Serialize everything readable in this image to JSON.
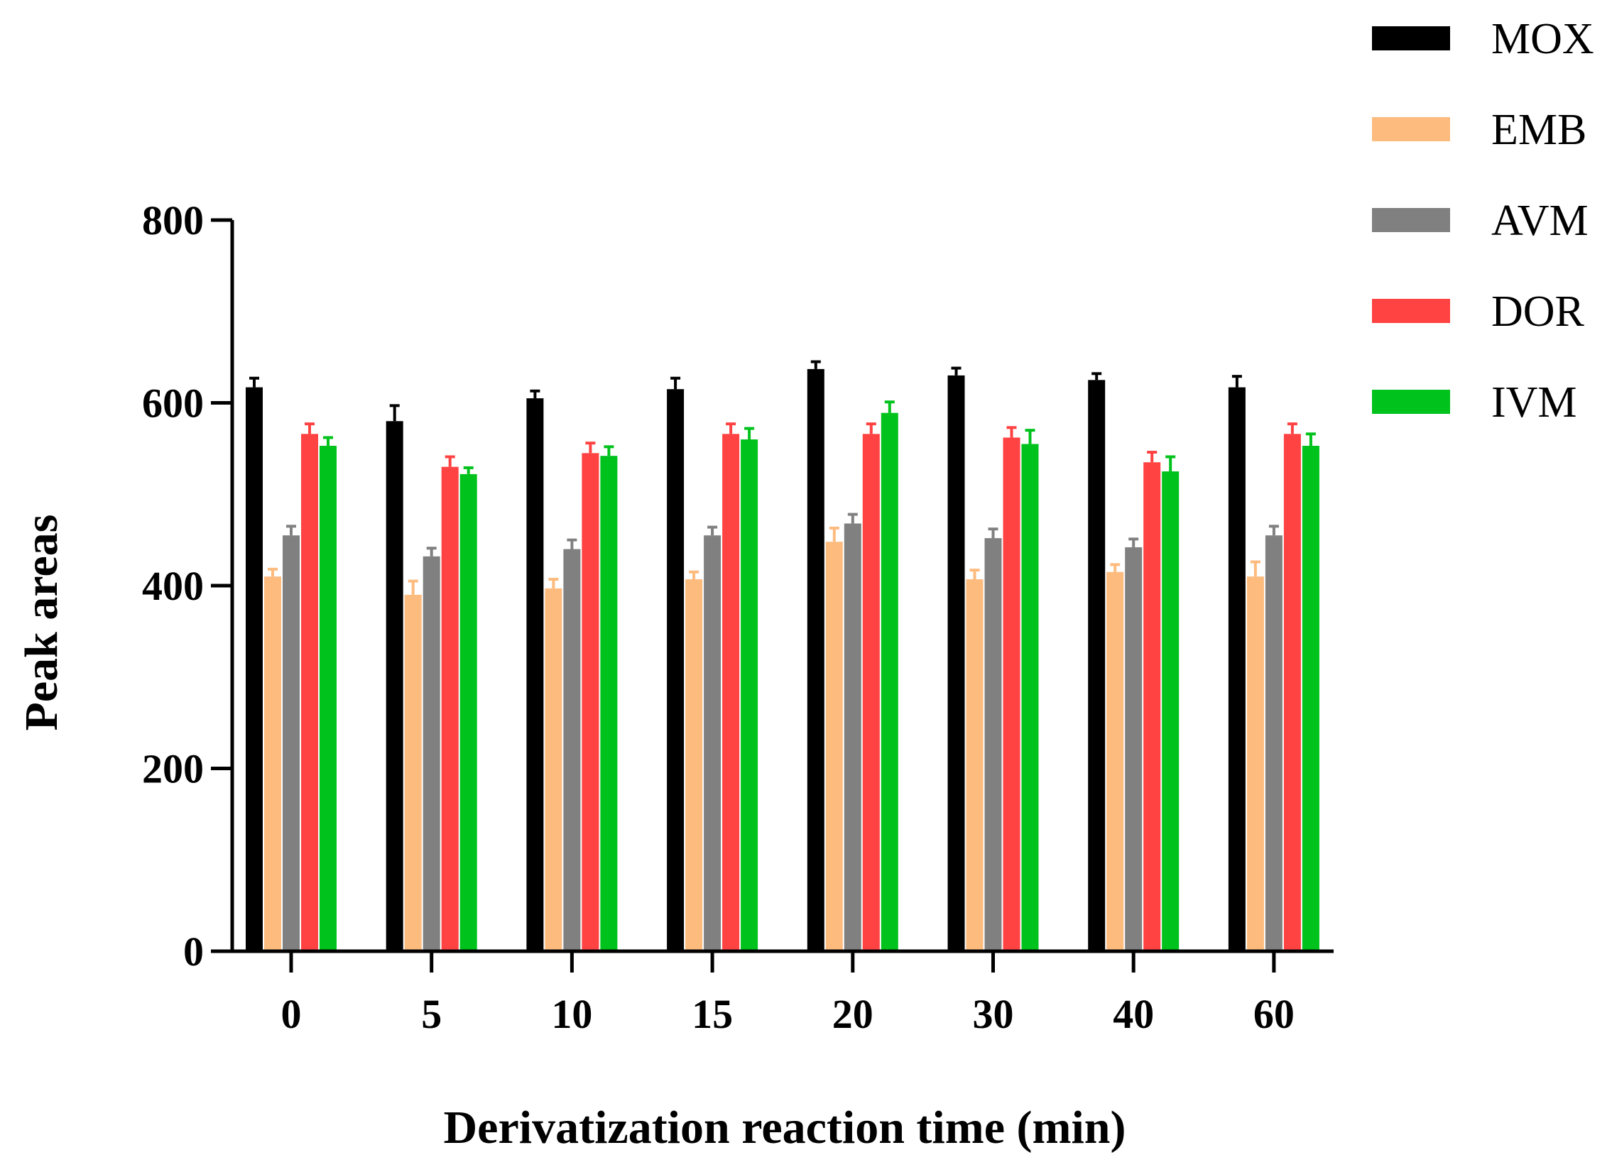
{
  "chart_data": {
    "type": "bar",
    "title": "",
    "xlabel": "Derivatization reaction time (min)",
    "ylabel": "Peak areas",
    "ylim": [
      0,
      800
    ],
    "yticks": [
      0,
      200,
      400,
      600,
      800
    ],
    "grid": false,
    "legend_position": "top-right",
    "categories": [
      "0",
      "5",
      "10",
      "15",
      "20",
      "30",
      "40",
      "60"
    ],
    "series": [
      {
        "name": "MOX",
        "color": "#000000",
        "values": [
          617,
          580,
          605,
          615,
          637,
          630,
          625,
          617
        ],
        "errors": [
          10,
          17,
          8,
          12,
          8,
          8,
          7,
          12
        ]
      },
      {
        "name": "EMB",
        "color": "#FDBB7E",
        "values": [
          410,
          390,
          397,
          407,
          448,
          407,
          415,
          410
        ],
        "errors": [
          8,
          15,
          10,
          8,
          15,
          10,
          8,
          16
        ]
      },
      {
        "name": "AVM",
        "color": "#808080",
        "values": [
          455,
          432,
          440,
          455,
          468,
          452,
          442,
          455
        ],
        "errors": [
          10,
          9,
          10,
          9,
          10,
          10,
          9,
          10
        ]
      },
      {
        "name": "DOR",
        "color": "#FF4242",
        "values": [
          566,
          530,
          545,
          566,
          566,
          562,
          535,
          566
        ],
        "errors": [
          11,
          11,
          11,
          11,
          11,
          11,
          11,
          11
        ]
      },
      {
        "name": "IVM",
        "color": "#00C21C",
        "values": [
          553,
          522,
          542,
          560,
          589,
          555,
          525,
          553
        ],
        "errors": [
          9,
          7,
          10,
          12,
          12,
          15,
          16,
          13
        ]
      }
    ]
  }
}
